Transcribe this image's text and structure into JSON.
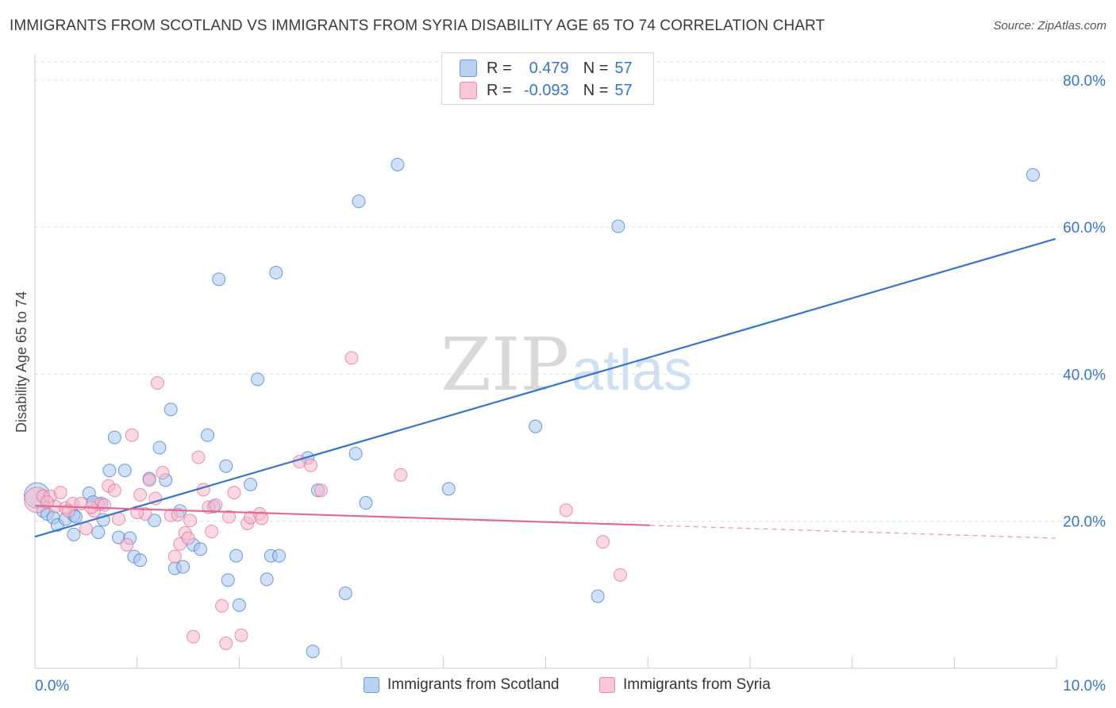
{
  "title": "IMMIGRANTS FROM SCOTLAND VS IMMIGRANTS FROM SYRIA DISABILITY AGE 65 TO 74 CORRELATION CHART",
  "source": "Source: ZipAtlas.com",
  "watermark": {
    "zip": "ZIP",
    "atlas": "atlas"
  },
  "legend": {
    "r_label": "R =",
    "n_label": "N =",
    "items": [
      {
        "r": "0.479",
        "n": "57",
        "color": "#3b74c7"
      },
      {
        "r": "-0.093",
        "n": "57",
        "color": "#e06a96"
      }
    ]
  },
  "chart_data": {
    "type": "scatter",
    "title": "IMMIGRANTS FROM SCOTLAND VS IMMIGRANTS FROM SYRIA DISABILITY AGE 65 TO 74 CORRELATION CHART",
    "xlabel": "",
    "ylabel": "Disability Age 65 to 74",
    "xlim": [
      0,
      10
    ],
    "ylim": [
      0,
      83
    ],
    "x_tick_labels": [
      "0.0%",
      "10.0%"
    ],
    "y_ticks": [
      20,
      40,
      60,
      80
    ],
    "y_tick_labels": [
      "20.0%",
      "40.0%",
      "60.0%",
      "80.0%"
    ],
    "grid": true,
    "legend_position": "top-center",
    "series": [
      {
        "name": "Immigrants from Scotland",
        "color": "#3b74c7",
        "fill": "#a9c6ee",
        "trend": {
          "x": [
            0,
            9.99
          ],
          "y": [
            17.9,
            58.4
          ],
          "dashed_from": null
        },
        "points": [
          {
            "x": 0.02,
            "y": 23.5,
            "big": true
          },
          {
            "x": 0.08,
            "y": 21.4
          },
          {
            "x": 0.12,
            "y": 21.0
          },
          {
            "x": 0.18,
            "y": 20.5
          },
          {
            "x": 0.22,
            "y": 19.5
          },
          {
            "x": 0.3,
            "y": 20.3
          },
          {
            "x": 0.38,
            "y": 20.8
          },
          {
            "x": 0.4,
            "y": 20.6
          },
          {
            "x": 0.38,
            "y": 18.2
          },
          {
            "x": 0.53,
            "y": 23.8
          },
          {
            "x": 0.57,
            "y": 22.6
          },
          {
            "x": 0.62,
            "y": 18.5
          },
          {
            "x": 0.67,
            "y": 20.2
          },
          {
            "x": 0.73,
            "y": 26.9
          },
          {
            "x": 0.78,
            "y": 31.4
          },
          {
            "x": 0.82,
            "y": 17.8
          },
          {
            "x": 0.88,
            "y": 26.9
          },
          {
            "x": 0.93,
            "y": 17.7
          },
          {
            "x": 0.97,
            "y": 15.2
          },
          {
            "x": 1.03,
            "y": 14.7
          },
          {
            "x": 1.12,
            "y": 25.8
          },
          {
            "x": 1.17,
            "y": 20.1
          },
          {
            "x": 1.22,
            "y": 30.0
          },
          {
            "x": 1.28,
            "y": 25.6
          },
          {
            "x": 1.33,
            "y": 35.2
          },
          {
            "x": 1.37,
            "y": 13.6
          },
          {
            "x": 1.42,
            "y": 21.4
          },
          {
            "x": 1.45,
            "y": 13.8
          },
          {
            "x": 1.55,
            "y": 16.8
          },
          {
            "x": 1.62,
            "y": 16.2
          },
          {
            "x": 1.69,
            "y": 31.7
          },
          {
            "x": 1.75,
            "y": 22.0
          },
          {
            "x": 1.8,
            "y": 52.9
          },
          {
            "x": 1.87,
            "y": 27.5
          },
          {
            "x": 1.89,
            "y": 12.0
          },
          {
            "x": 1.97,
            "y": 15.3
          },
          {
            "x": 2.0,
            "y": 8.6
          },
          {
            "x": 2.11,
            "y": 25.0
          },
          {
            "x": 2.18,
            "y": 39.3
          },
          {
            "x": 2.27,
            "y": 12.1
          },
          {
            "x": 2.31,
            "y": 15.3
          },
          {
            "x": 2.36,
            "y": 53.8
          },
          {
            "x": 2.39,
            "y": 15.3
          },
          {
            "x": 2.67,
            "y": 28.6
          },
          {
            "x": 2.72,
            "y": 2.3
          },
          {
            "x": 2.77,
            "y": 24.2
          },
          {
            "x": 3.04,
            "y": 10.2
          },
          {
            "x": 3.14,
            "y": 29.2
          },
          {
            "x": 3.17,
            "y": 63.5
          },
          {
            "x": 3.24,
            "y": 22.5
          },
          {
            "x": 3.55,
            "y": 68.5
          },
          {
            "x": 4.05,
            "y": 24.4
          },
          {
            "x": 4.9,
            "y": 32.9
          },
          {
            "x": 5.51,
            "y": 9.8
          },
          {
            "x": 5.71,
            "y": 60.1
          },
          {
            "x": 9.77,
            "y": 67.1
          },
          {
            "x": 0.65,
            "y": 22.4
          }
        ]
      },
      {
        "name": "Immigrants from Syria",
        "color": "#e06a96",
        "fill": "#f5b8cc",
        "trend": {
          "x": [
            0,
            9.99
          ],
          "y": [
            22.1,
            17.7
          ],
          "dashed_from": 6.02
        },
        "points": [
          {
            "x": 0.02,
            "y": 22.9,
            "big": true
          },
          {
            "x": 0.08,
            "y": 23.4
          },
          {
            "x": 0.15,
            "y": 23.4
          },
          {
            "x": 0.2,
            "y": 22.0
          },
          {
            "x": 0.25,
            "y": 23.9
          },
          {
            "x": 0.3,
            "y": 21.8
          },
          {
            "x": 0.37,
            "y": 22.4
          },
          {
            "x": 0.45,
            "y": 22.4
          },
          {
            "x": 0.5,
            "y": 19.0
          },
          {
            "x": 0.58,
            "y": 21.4
          },
          {
            "x": 0.62,
            "y": 22.3
          },
          {
            "x": 0.68,
            "y": 22.2
          },
          {
            "x": 0.72,
            "y": 24.8
          },
          {
            "x": 0.78,
            "y": 24.2
          },
          {
            "x": 0.82,
            "y": 20.3
          },
          {
            "x": 0.9,
            "y": 16.8
          },
          {
            "x": 0.95,
            "y": 31.7
          },
          {
            "x": 1.03,
            "y": 23.6
          },
          {
            "x": 1.08,
            "y": 21.0
          },
          {
            "x": 1.12,
            "y": 25.6
          },
          {
            "x": 1.18,
            "y": 23.1
          },
          {
            "x": 1.2,
            "y": 38.8
          },
          {
            "x": 1.25,
            "y": 26.6
          },
          {
            "x": 1.33,
            "y": 20.8
          },
          {
            "x": 1.37,
            "y": 15.2
          },
          {
            "x": 1.42,
            "y": 16.9
          },
          {
            "x": 1.47,
            "y": 18.4
          },
          {
            "x": 1.5,
            "y": 17.7
          },
          {
            "x": 1.52,
            "y": 20.1
          },
          {
            "x": 1.55,
            "y": 4.3
          },
          {
            "x": 1.6,
            "y": 28.7
          },
          {
            "x": 1.65,
            "y": 24.3
          },
          {
            "x": 1.7,
            "y": 21.9
          },
          {
            "x": 1.73,
            "y": 18.6
          },
          {
            "x": 1.77,
            "y": 22.2
          },
          {
            "x": 1.83,
            "y": 8.5
          },
          {
            "x": 1.87,
            "y": 3.4
          },
          {
            "x": 1.9,
            "y": 20.6
          },
          {
            "x": 1.95,
            "y": 23.9
          },
          {
            "x": 2.02,
            "y": 4.5
          },
          {
            "x": 2.08,
            "y": 19.7
          },
          {
            "x": 2.11,
            "y": 20.5
          },
          {
            "x": 2.2,
            "y": 21.0
          },
          {
            "x": 2.22,
            "y": 20.4
          },
          {
            "x": 2.59,
            "y": 28.1
          },
          {
            "x": 2.7,
            "y": 27.6
          },
          {
            "x": 2.8,
            "y": 24.2
          },
          {
            "x": 3.1,
            "y": 42.2
          },
          {
            "x": 3.58,
            "y": 26.3
          },
          {
            "x": 5.2,
            "y": 21.5
          },
          {
            "x": 5.56,
            "y": 17.2
          },
          {
            "x": 5.73,
            "y": 12.7
          },
          {
            "x": 0.33,
            "y": 21.4
          },
          {
            "x": 0.55,
            "y": 21.9
          },
          {
            "x": 1.0,
            "y": 21.2
          },
          {
            "x": 1.4,
            "y": 20.9
          },
          {
            "x": 0.12,
            "y": 22.6
          }
        ]
      }
    ]
  }
}
